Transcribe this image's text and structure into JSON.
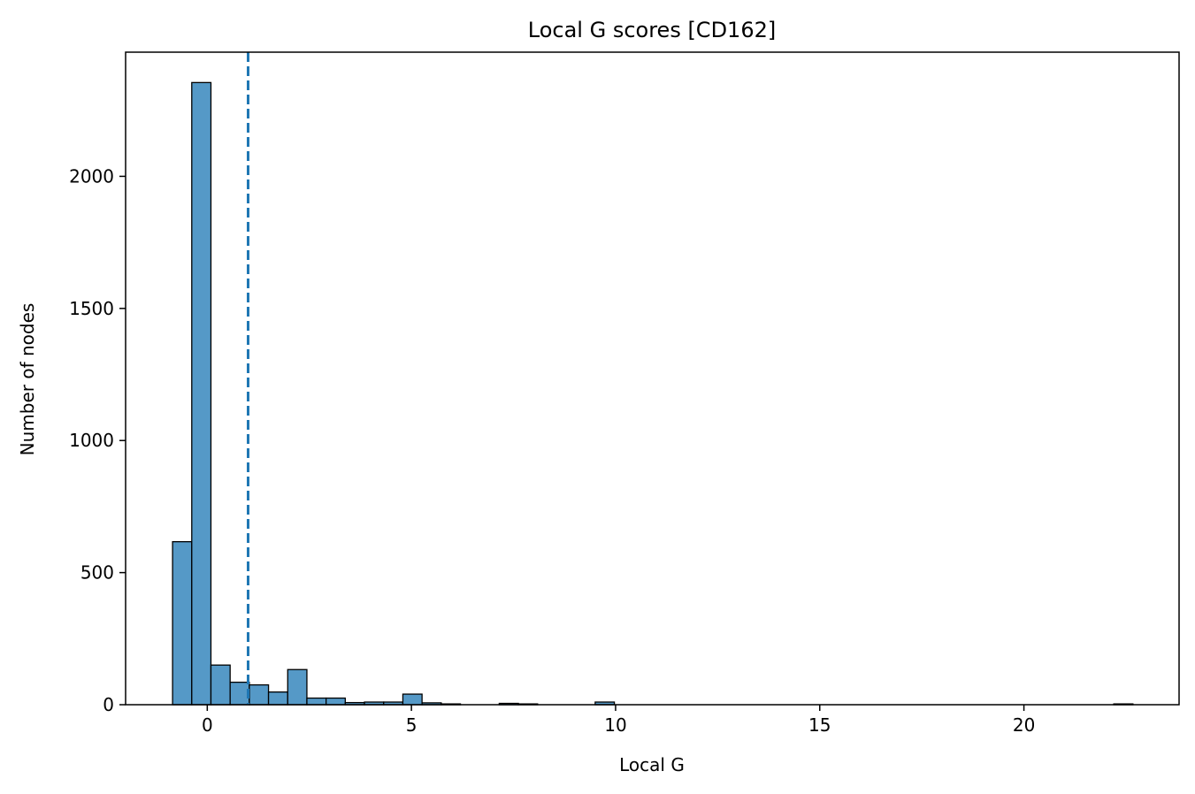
{
  "chart_data": {
    "type": "bar",
    "title": "Local G scores [CD162]",
    "xlabel": "Local G",
    "ylabel": "Number of nodes",
    "xlim": [
      -2.0,
      23.8
    ],
    "ylim": [
      0,
      2470
    ],
    "grid": false,
    "legend": "none",
    "bar_color": "#5599c7",
    "edge_color": "#000000",
    "threshold_color": "#1f77b4",
    "threshold_x": 1.0,
    "threshold_style": "dashed",
    "bin_width": 0.47,
    "bins": [
      {
        "x0": -0.85,
        "value": 617
      },
      {
        "x0": -0.38,
        "value": 2355
      },
      {
        "x0": 0.09,
        "value": 150
      },
      {
        "x0": 0.56,
        "value": 85
      },
      {
        "x0": 1.03,
        "value": 75
      },
      {
        "x0": 1.5,
        "value": 48
      },
      {
        "x0": 1.97,
        "value": 133
      },
      {
        "x0": 2.44,
        "value": 25
      },
      {
        "x0": 2.91,
        "value": 25
      },
      {
        "x0": 3.38,
        "value": 8
      },
      {
        "x0": 3.85,
        "value": 10
      },
      {
        "x0": 4.32,
        "value": 10
      },
      {
        "x0": 4.79,
        "value": 40
      },
      {
        "x0": 5.26,
        "value": 7
      },
      {
        "x0": 5.73,
        "value": 3
      },
      {
        "x0": 7.15,
        "value": 5
      },
      {
        "x0": 7.62,
        "value": 3
      },
      {
        "x0": 9.5,
        "value": 10
      },
      {
        "x0": 22.2,
        "value": 3
      }
    ],
    "x_ticks": [
      {
        "value": 0,
        "label": "0"
      },
      {
        "value": 5,
        "label": "5"
      },
      {
        "value": 10,
        "label": "10"
      },
      {
        "value": 15,
        "label": "15"
      },
      {
        "value": 20,
        "label": "20"
      }
    ],
    "y_ticks": [
      {
        "value": 0,
        "label": "0"
      },
      {
        "value": 500,
        "label": "500"
      },
      {
        "value": 1000,
        "label": "1000"
      },
      {
        "value": 1500,
        "label": "1500"
      },
      {
        "value": 2000,
        "label": "2000"
      }
    ]
  }
}
